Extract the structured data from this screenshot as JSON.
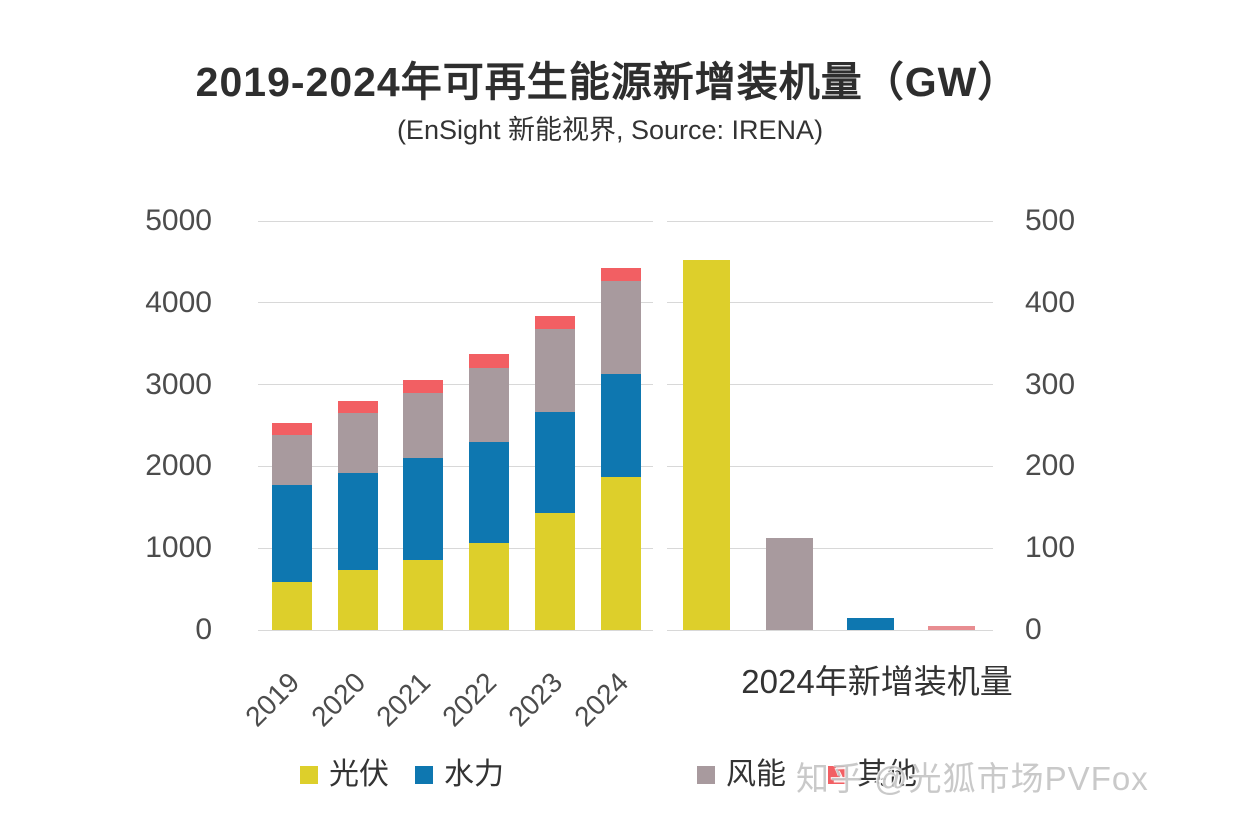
{
  "title": "2019-2024年可再生能源新增装机量（GW）",
  "subtitle": "(EnSight 新能视界, Source: IRENA)",
  "watermark": "知乎 @光狐市场PVFox",
  "colors": {
    "solar": "#ddcf2b",
    "hydro": "#0e77b0",
    "wind": "#a89a9e",
    "other": "#f25f63",
    "other_light": "#e88d91",
    "gridline": "#d8d8d8",
    "axis_text": "#4c4c4c"
  },
  "legend": [
    {
      "label": "光伏",
      "color_key": "solar"
    },
    {
      "label": "水力",
      "color_key": "hydro"
    },
    {
      "label": "风能",
      "color_key": "wind"
    },
    {
      "label": "其他",
      "color_key": "other"
    }
  ],
  "chart_data": [
    {
      "type": "bar",
      "stacked": true,
      "title": "",
      "categories": [
        "2019",
        "2020",
        "2021",
        "2022",
        "2023",
        "2024"
      ],
      "series": [
        {
          "name": "光伏",
          "color_key": "solar",
          "values": [
            585,
            730,
            855,
            1060,
            1430,
            1865
          ]
        },
        {
          "name": "水力",
          "color_key": "hydro",
          "values": [
            1185,
            1190,
            1245,
            1240,
            1240,
            1265
          ]
        },
        {
          "name": "风能",
          "color_key": "wind",
          "values": [
            610,
            730,
            800,
            900,
            1010,
            1140
          ]
        },
        {
          "name": "其他",
          "color_key": "other",
          "values": [
            150,
            150,
            160,
            170,
            160,
            160
          ]
        }
      ],
      "ylim": [
        0,
        5000
      ],
      "yticks": [
        0,
        1000,
        2000,
        3000,
        4000,
        5000
      ],
      "axis_side": "left",
      "grid": true,
      "legend_position": "bottom"
    },
    {
      "type": "bar",
      "stacked": false,
      "title": "2024年新增装机量",
      "categories": [
        "光伏",
        "风能",
        "水力",
        "其他"
      ],
      "values": [
        452,
        113,
        15,
        5
      ],
      "bar_color_keys": [
        "solar",
        "wind",
        "hydro",
        "other_light"
      ],
      "ylim": [
        0,
        500
      ],
      "yticks": [
        0,
        100,
        200,
        300,
        400,
        500
      ],
      "axis_side": "right",
      "grid": true
    }
  ]
}
